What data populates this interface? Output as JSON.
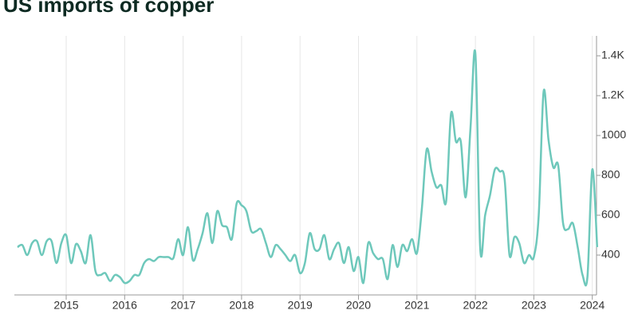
{
  "chart_data": {
    "type": "line",
    "title": "US imports of copper",
    "x": [
      "2014-03",
      "2014-04",
      "2014-05",
      "2014-06",
      "2014-07",
      "2014-08",
      "2014-09",
      "2014-10",
      "2014-11",
      "2014-12",
      "2015-01",
      "2015-02",
      "2015-03",
      "2015-04",
      "2015-05",
      "2015-06",
      "2015-07",
      "2015-08",
      "2015-09",
      "2015-10",
      "2015-11",
      "2015-12",
      "2016-01",
      "2016-02",
      "2016-03",
      "2016-04",
      "2016-05",
      "2016-06",
      "2016-07",
      "2016-08",
      "2016-09",
      "2016-10",
      "2016-11",
      "2016-12",
      "2017-01",
      "2017-02",
      "2017-03",
      "2017-04",
      "2017-05",
      "2017-06",
      "2017-07",
      "2017-08",
      "2017-09",
      "2017-10",
      "2017-11",
      "2017-12",
      "2018-01",
      "2018-02",
      "2018-03",
      "2018-04",
      "2018-05",
      "2018-06",
      "2018-07",
      "2018-08",
      "2018-09",
      "2018-10",
      "2018-11",
      "2018-12",
      "2019-01",
      "2019-02",
      "2019-03",
      "2019-04",
      "2019-05",
      "2019-06",
      "2019-07",
      "2019-08",
      "2019-09",
      "2019-10",
      "2019-11",
      "2019-12",
      "2020-01",
      "2020-02",
      "2020-03",
      "2020-04",
      "2020-05",
      "2020-06",
      "2020-07",
      "2020-08",
      "2020-09",
      "2020-10",
      "2020-11",
      "2020-12",
      "2021-01",
      "2021-02",
      "2021-03",
      "2021-04",
      "2021-05",
      "2021-06",
      "2021-07",
      "2021-08",
      "2021-09",
      "2021-10",
      "2021-11",
      "2021-12",
      "2022-01",
      "2022-02",
      "2022-03",
      "2022-04",
      "2022-05",
      "2022-06",
      "2022-07",
      "2022-08",
      "2022-09",
      "2022-10",
      "2022-11",
      "2022-12",
      "2023-01",
      "2023-02",
      "2023-03",
      "2023-04",
      "2023-05",
      "2023-06",
      "2023-07",
      "2023-08",
      "2023-09",
      "2023-10",
      "2023-11",
      "2023-12",
      "2024-01",
      "2024-02"
    ],
    "series": [
      {
        "name": "US imports of copper",
        "color": "#6ec8bb",
        "values": [
          440,
          450,
          400,
          460,
          470,
          400,
          470,
          470,
          360,
          460,
          500,
          360,
          455,
          420,
          360,
          500,
          320,
          300,
          310,
          270,
          300,
          290,
          260,
          270,
          300,
          300,
          360,
          380,
          370,
          390,
          390,
          390,
          385,
          480,
          400,
          540,
          375,
          430,
          510,
          610,
          460,
          620,
          550,
          540,
          480,
          660,
          650,
          620,
          520,
          520,
          530,
          460,
          390,
          450,
          430,
          400,
          370,
          400,
          310,
          360,
          510,
          430,
          430,
          500,
          380,
          430,
          460,
          360,
          440,
          320,
          390,
          260,
          460,
          410,
          380,
          380,
          280,
          450,
          340,
          450,
          420,
          480,
          410,
          630,
          930,
          820,
          740,
          750,
          670,
          1110,
          970,
          970,
          690,
          1040,
          1410,
          430,
          600,
          700,
          830,
          820,
          780,
          400,
          490,
          460,
          360,
          400,
          390,
          600,
          1220,
          980,
          840,
          850,
          560,
          530,
          560,
          440,
          300,
          290,
          830,
          440
        ]
      }
    ],
    "ylim": [
      200,
      1500
    ],
    "yticks": [
      400,
      600,
      800,
      1000,
      {
        "value": 1200,
        "label": "1.2K"
      },
      {
        "value": 1400,
        "label": "1.4K"
      }
    ],
    "xticks": [
      "2015",
      "2016",
      "2017",
      "2018",
      "2019",
      "2020",
      "2021",
      "2022",
      "2023",
      "2024"
    ],
    "grid": true
  }
}
